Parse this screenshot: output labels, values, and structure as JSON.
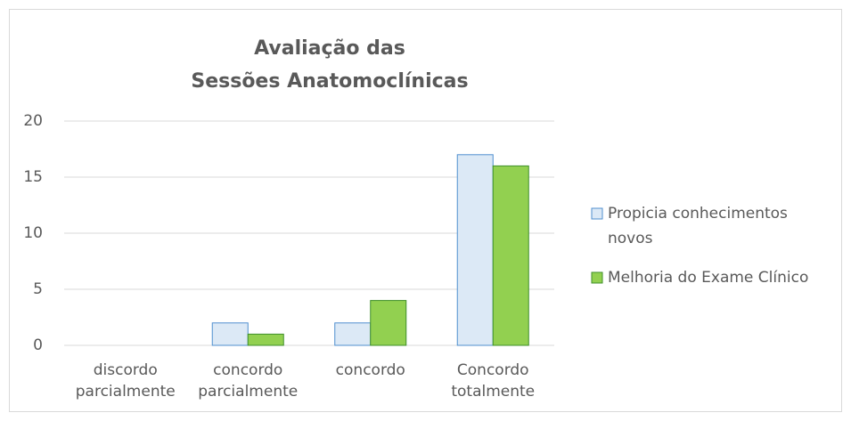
{
  "chart_data": {
    "type": "bar",
    "title": [
      "Avaliação das",
      "Sessões Anatomoclínicas"
    ],
    "categories": [
      "discordo parcialmente",
      "concordo parcialmente",
      "concordo",
      "Concordo totalmente"
    ],
    "series": [
      {
        "name": "Propicia conhecimentos novos",
        "color": "#dce9f6",
        "stroke": "#4f8fcf",
        "values": [
          0,
          2,
          2,
          17
        ]
      },
      {
        "name": "Melhoria do Exame Clínico",
        "color": "#92d050",
        "stroke": "#3f8f2a",
        "values": [
          0,
          1,
          4,
          16
        ]
      }
    ],
    "ylim": [
      0,
      20
    ],
    "yticks": [
      0,
      5,
      10,
      15,
      20
    ],
    "grid": true,
    "legend": "right"
  }
}
